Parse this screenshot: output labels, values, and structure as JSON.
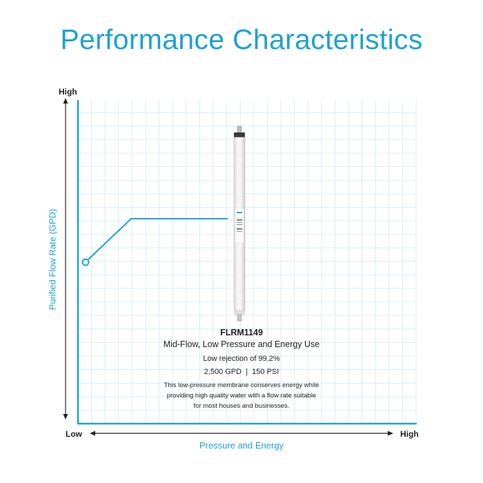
{
  "title": "Performance Characteristics",
  "y_axis": {
    "label": "Purified Flow Rate (GPD)",
    "high": "High"
  },
  "x_axis": {
    "label": "Pressure and Energy",
    "low": "Low",
    "high": "High"
  },
  "product": {
    "model": "FLRM1149",
    "subtitle": "Mid-Flow, Low Pressure and Energy Use",
    "rejection": "Low rejection of 99.2%",
    "specs": "2,500 GPD  |  150 PSI",
    "description_lines": [
      "This low-pressure membrane conserves energy while",
      "providing high quality water with a flow rate suitable",
      "for most houses and businesses."
    ]
  },
  "colors": {
    "accent": "#1da1d8",
    "grid": "#cdeaf5",
    "text": "#222222"
  }
}
